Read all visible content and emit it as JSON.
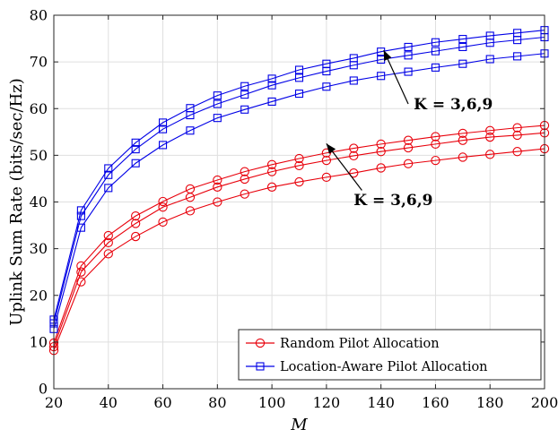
{
  "chart_data": {
    "type": "line",
    "xlabel": "M",
    "ylabel": "Uplink Sum Rate (bits/sec/Hz)",
    "xlim": [
      20,
      200
    ],
    "ylim": [
      0,
      80
    ],
    "x_ticks": [
      20,
      40,
      60,
      80,
      100,
      120,
      140,
      160,
      180,
      200
    ],
    "y_ticks": [
      0,
      10,
      20,
      30,
      40,
      50,
      60,
      70,
      80
    ],
    "x": [
      20,
      30,
      40,
      50,
      60,
      70,
      80,
      90,
      100,
      110,
      120,
      130,
      140,
      150,
      160,
      170,
      180,
      190,
      200
    ],
    "grid": true,
    "legend_position": "bottom-right",
    "series": [
      {
        "name": "Random Pilot Allocation",
        "color": "#e8000b",
        "marker": "circle",
        "lines": [
          [
            9.8,
            26.3,
            32.8,
            37.0,
            40.1,
            42.8,
            44.7,
            46.5,
            48.0,
            49.3,
            50.5,
            51.5,
            52.4,
            53.2,
            54.0,
            54.7,
            55.3,
            55.9,
            56.4
          ],
          [
            9.0,
            25.0,
            31.3,
            35.4,
            38.9,
            41.0,
            43.2,
            44.9,
            46.5,
            47.8,
            48.9,
            49.9,
            50.8,
            51.6,
            52.4,
            53.2,
            53.9,
            54.3,
            54.8
          ],
          [
            8.2,
            22.9,
            28.9,
            32.6,
            35.7,
            38.1,
            40.0,
            41.7,
            43.2,
            44.3,
            45.3,
            46.2,
            47.3,
            48.2,
            48.9,
            49.6,
            50.2,
            50.8,
            51.4
          ]
        ]
      },
      {
        "name": "Location-Aware Pilot Allocation",
        "color": "#0000e6",
        "marker": "square",
        "lines": [
          [
            14.8,
            38.2,
            47.2,
            52.7,
            57.0,
            60.1,
            62.8,
            64.8,
            66.4,
            68.3,
            69.6,
            70.8,
            72.2,
            73.2,
            74.2,
            74.9,
            75.6,
            76.2,
            76.8
          ],
          [
            14.0,
            37.0,
            45.8,
            51.3,
            55.6,
            58.6,
            61.0,
            63.0,
            65.0,
            66.6,
            68.0,
            69.3,
            70.5,
            71.4,
            72.3,
            73.2,
            74.1,
            74.7,
            75.3
          ],
          [
            12.8,
            34.5,
            43.0,
            48.3,
            52.2,
            55.3,
            58.0,
            59.8,
            61.5,
            63.2,
            64.7,
            66.0,
            67.0,
            67.9,
            68.8,
            69.6,
            70.6,
            71.2,
            71.8
          ]
        ]
      }
    ],
    "annotations": [
      {
        "text": "K = 3,6,9",
        "arrow_from": [
          150,
          61
        ],
        "arrow_to": [
          141,
          72.5
        ],
        "text_at": [
          152,
          61
        ]
      },
      {
        "text": "K = 3,6,9",
        "arrow_from": [
          133,
          42.5
        ],
        "arrow_to": [
          120,
          52.5
        ],
        "text_at": [
          130,
          40.5
        ]
      }
    ]
  }
}
